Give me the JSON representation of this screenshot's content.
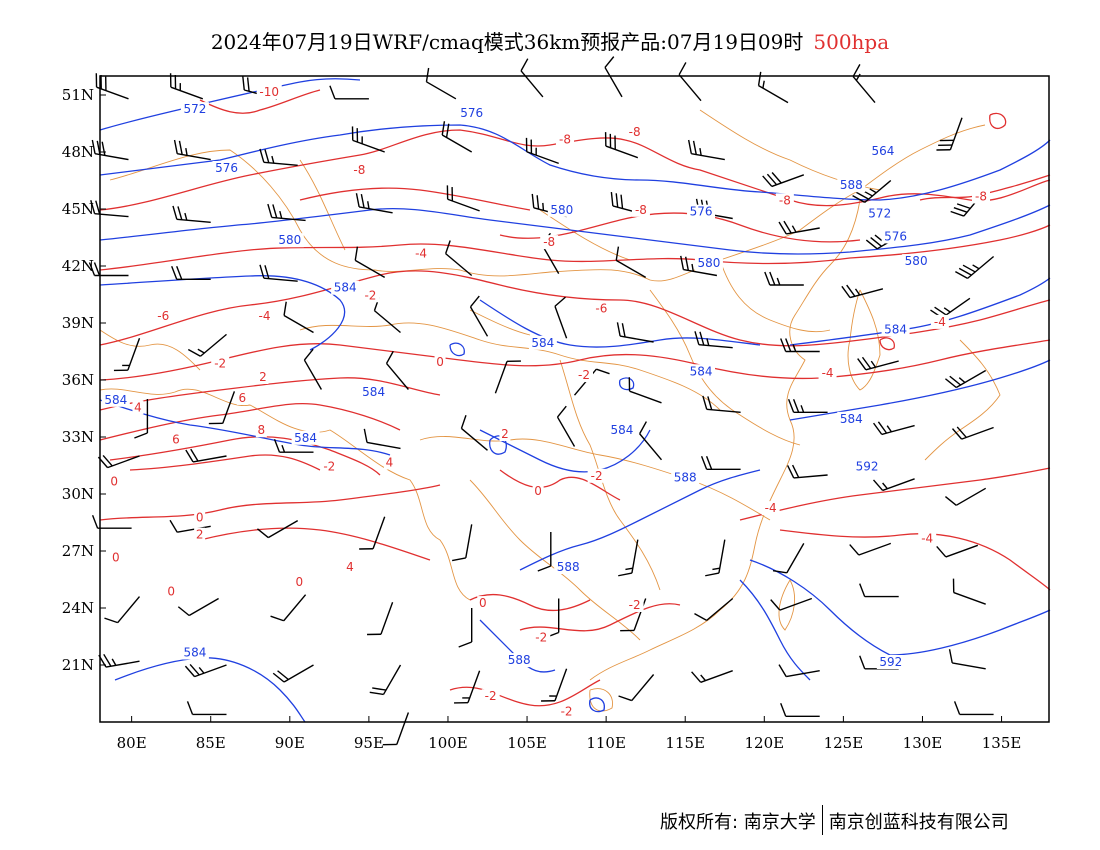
{
  "header": {
    "title": "2024年07月19日WRF/cmaq模式36km预报产品:07月19日09时",
    "level": "500hpa"
  },
  "colors": {
    "height_contour": "#2040e0",
    "temperature_contour": "#e03030",
    "coastline_border": "#e08a30",
    "wind_barb": "#000000",
    "frame": "#000000",
    "level_label": "#e03030"
  },
  "map": {
    "lon_range": [
      78,
      138
    ],
    "lat_range": [
      18,
      52
    ],
    "lon_ticks": [
      {
        "value": 80,
        "label": "80E"
      },
      {
        "value": 85,
        "label": "85E"
      },
      {
        "value": 90,
        "label": "90E"
      },
      {
        "value": 95,
        "label": "95E"
      },
      {
        "value": 100,
        "label": "100E"
      },
      {
        "value": 105,
        "label": "105E"
      },
      {
        "value": 110,
        "label": "110E"
      },
      {
        "value": 115,
        "label": "115E"
      },
      {
        "value": 120,
        "label": "120E"
      },
      {
        "value": 125,
        "label": "125E"
      },
      {
        "value": 130,
        "label": "130E"
      },
      {
        "value": 135,
        "label": "135E"
      }
    ],
    "lat_ticks": [
      {
        "value": 51,
        "label": "51N"
      },
      {
        "value": 48,
        "label": "48N"
      },
      {
        "value": 45,
        "label": "45N"
      },
      {
        "value": 42,
        "label": "42N"
      },
      {
        "value": 39,
        "label": "39N"
      },
      {
        "value": 36,
        "label": "36N"
      },
      {
        "value": 33,
        "label": "33N"
      },
      {
        "value": 30,
        "label": "30N"
      },
      {
        "value": 27,
        "label": "27N"
      },
      {
        "value": 24,
        "label": "24N"
      },
      {
        "value": 21,
        "label": "21N"
      }
    ],
    "height_labels": [
      {
        "text": "572",
        "lon": 84.0,
        "lat": 50.1
      },
      {
        "text": "576",
        "lon": 86.0,
        "lat": 47.0
      },
      {
        "text": "576",
        "lon": 101.5,
        "lat": 49.9
      },
      {
        "text": "580",
        "lon": 90.0,
        "lat": 43.2
      },
      {
        "text": "580",
        "lon": 107.2,
        "lat": 44.8
      },
      {
        "text": "584",
        "lon": 93.5,
        "lat": 40.7
      },
      {
        "text": "584",
        "lon": 106.0,
        "lat": 37.8
      },
      {
        "text": "584",
        "lon": 95.3,
        "lat": 35.2
      },
      {
        "text": "584",
        "lon": 91.0,
        "lat": 32.8
      },
      {
        "text": "584",
        "lon": 111.0,
        "lat": 33.2
      },
      {
        "text": "584",
        "lon": 116.0,
        "lat": 36.3
      },
      {
        "text": "584",
        "lon": 128.3,
        "lat": 38.5
      },
      {
        "text": "584",
        "lon": 84.0,
        "lat": 21.5
      },
      {
        "text": "588",
        "lon": 107.6,
        "lat": 26.0
      },
      {
        "text": "588",
        "lon": 115.0,
        "lat": 30.7
      },
      {
        "text": "588",
        "lon": 104.5,
        "lat": 21.1
      },
      {
        "text": "588",
        "lon": 125.5,
        "lat": 46.1
      },
      {
        "text": "580",
        "lon": 116.5,
        "lat": 42.0
      },
      {
        "text": "580",
        "lon": 129.6,
        "lat": 42.1
      },
      {
        "text": "576",
        "lon": 116.0,
        "lat": 44.7
      },
      {
        "text": "576",
        "lon": 128.3,
        "lat": 43.4
      },
      {
        "text": "572",
        "lon": 127.3,
        "lat": 44.6
      },
      {
        "text": "564",
        "lon": 127.5,
        "lat": 47.9
      },
      {
        "text": "592",
        "lon": 126.5,
        "lat": 31.3
      },
      {
        "text": "592",
        "lon": 128.0,
        "lat": 21.0
      },
      {
        "text": "584",
        "lon": 79.0,
        "lat": 34.8
      },
      {
        "text": "584",
        "lon": 125.5,
        "lat": 33.8
      }
    ],
    "temp_labels": [
      {
        "text": "-10",
        "lon": 88.7,
        "lat": 51.0
      },
      {
        "text": "-8",
        "lon": 94.4,
        "lat": 46.9
      },
      {
        "text": "-8",
        "lon": 107.4,
        "lat": 48.5
      },
      {
        "text": "-8",
        "lon": 111.8,
        "lat": 48.9
      },
      {
        "text": "-8",
        "lon": 112.2,
        "lat": 44.8
      },
      {
        "text": "-8",
        "lon": 106.4,
        "lat": 43.1
      },
      {
        "text": "-8",
        "lon": 121.3,
        "lat": 45.3
      },
      {
        "text": "-8",
        "lon": 133.7,
        "lat": 45.5
      },
      {
        "text": "-4",
        "lon": 98.3,
        "lat": 42.5
      },
      {
        "text": "-4",
        "lon": 88.4,
        "lat": 39.2
      },
      {
        "text": "-4",
        "lon": 131.1,
        "lat": 38.9
      },
      {
        "text": "-4",
        "lon": 124.0,
        "lat": 36.2
      },
      {
        "text": "-4",
        "lon": 120.4,
        "lat": 29.1
      },
      {
        "text": "-4",
        "lon": 130.3,
        "lat": 27.5
      },
      {
        "text": "-2",
        "lon": 95.1,
        "lat": 40.3
      },
      {
        "text": "-2",
        "lon": 85.6,
        "lat": 36.7
      },
      {
        "text": "-2",
        "lon": 108.6,
        "lat": 36.1
      },
      {
        "text": "-2",
        "lon": 109.4,
        "lat": 30.8
      },
      {
        "text": "-2",
        "lon": 92.5,
        "lat": 31.3
      },
      {
        "text": "-2",
        "lon": 111.8,
        "lat": 24.0
      },
      {
        "text": "-2",
        "lon": 105.9,
        "lat": 22.3
      },
      {
        "text": "-2",
        "lon": 102.7,
        "lat": 19.2
      },
      {
        "text": "-2",
        "lon": 107.5,
        "lat": 18.4
      },
      {
        "text": "-6",
        "lon": 82.0,
        "lat": 39.2
      },
      {
        "text": "-6",
        "lon": 109.7,
        "lat": 39.6
      },
      {
        "text": "2",
        "lon": 88.3,
        "lat": 36.0
      },
      {
        "text": "2",
        "lon": 103.6,
        "lat": 33.0
      },
      {
        "text": "2",
        "lon": 84.3,
        "lat": 27.7
      },
      {
        "text": "4",
        "lon": 80.4,
        "lat": 34.4
      },
      {
        "text": "4",
        "lon": 96.3,
        "lat": 31.5
      },
      {
        "text": "4",
        "lon": 93.8,
        "lat": 26.0
      },
      {
        "text": "6",
        "lon": 87.0,
        "lat": 34.9
      },
      {
        "text": "6",
        "lon": 82.8,
        "lat": 32.7
      },
      {
        "text": "8",
        "lon": 88.2,
        "lat": 33.2
      },
      {
        "text": "0",
        "lon": 99.5,
        "lat": 36.8
      },
      {
        "text": "0",
        "lon": 78.9,
        "lat": 30.5
      },
      {
        "text": "0",
        "lon": 84.3,
        "lat": 28.6
      },
      {
        "text": "0",
        "lon": 79.0,
        "lat": 26.5
      },
      {
        "text": "0",
        "lon": 82.5,
        "lat": 24.7
      },
      {
        "text": "0",
        "lon": 90.6,
        "lat": 25.2
      },
      {
        "text": "0",
        "lon": 105.7,
        "lat": 30.0
      },
      {
        "text": "0",
        "lon": 102.2,
        "lat": 24.1
      }
    ],
    "wind_barbs": [
      {
        "lon": 79.8,
        "lat": 50.8,
        "dir": 290,
        "spd": 30
      },
      {
        "lon": 84.5,
        "lat": 50.8,
        "dir": 290,
        "spd": 25
      },
      {
        "lon": 89.2,
        "lat": 50.8,
        "dir": 285,
        "spd": 20
      },
      {
        "lon": 95.0,
        "lat": 50.8,
        "dir": 270,
        "spd": 10
      },
      {
        "lon": 100.5,
        "lat": 50.8,
        "dir": 300,
        "spd": 10
      },
      {
        "lon": 106.0,
        "lat": 50.9,
        "dir": 320,
        "spd": 10
      },
      {
        "lon": 111.0,
        "lat": 50.9,
        "dir": 330,
        "spd": 10
      },
      {
        "lon": 116.0,
        "lat": 50.7,
        "dir": 320,
        "spd": 10
      },
      {
        "lon": 121.5,
        "lat": 50.6,
        "dir": 300,
        "spd": 15
      },
      {
        "lon": 127.0,
        "lat": 50.6,
        "dir": 320,
        "spd": 15
      },
      {
        "lon": 132.5,
        "lat": 49.8,
        "dir": 200,
        "spd": 30
      },
      {
        "lon": 79.8,
        "lat": 47.6,
        "dir": 280,
        "spd": 30
      },
      {
        "lon": 85.0,
        "lat": 47.6,
        "dir": 280,
        "spd": 25
      },
      {
        "lon": 90.5,
        "lat": 47.3,
        "dir": 275,
        "spd": 25
      },
      {
        "lon": 96.0,
        "lat": 48.0,
        "dir": 290,
        "spd": 25
      },
      {
        "lon": 101.5,
        "lat": 48.0,
        "dir": 300,
        "spd": 20
      },
      {
        "lon": 107.0,
        "lat": 47.4,
        "dir": 290,
        "spd": 25
      },
      {
        "lon": 112.0,
        "lat": 47.7,
        "dir": 290,
        "spd": 30
      },
      {
        "lon": 117.5,
        "lat": 47.6,
        "dir": 280,
        "spd": 25
      },
      {
        "lon": 122.5,
        "lat": 46.8,
        "dir": 250,
        "spd": 30
      },
      {
        "lon": 128.0,
        "lat": 46.5,
        "dir": 230,
        "spd": 35
      },
      {
        "lon": 134.0,
        "lat": 46.0,
        "dir": 220,
        "spd": 30
      },
      {
        "lon": 79.8,
        "lat": 44.6,
        "dir": 275,
        "spd": 20
      },
      {
        "lon": 85.0,
        "lat": 44.3,
        "dir": 275,
        "spd": 25
      },
      {
        "lon": 91.0,
        "lat": 44.4,
        "dir": 275,
        "spd": 25
      },
      {
        "lon": 96.5,
        "lat": 44.8,
        "dir": 280,
        "spd": 25
      },
      {
        "lon": 102.0,
        "lat": 44.9,
        "dir": 290,
        "spd": 20
      },
      {
        "lon": 107.5,
        "lat": 44.6,
        "dir": 285,
        "spd": 25
      },
      {
        "lon": 112.5,
        "lat": 44.7,
        "dir": 285,
        "spd": 30
      },
      {
        "lon": 118.0,
        "lat": 44.5,
        "dir": 280,
        "spd": 30
      },
      {
        "lon": 123.5,
        "lat": 44.0,
        "dir": 260,
        "spd": 25
      },
      {
        "lon": 129.0,
        "lat": 43.8,
        "dir": 240,
        "spd": 30
      },
      {
        "lon": 134.5,
        "lat": 42.5,
        "dir": 230,
        "spd": 35
      },
      {
        "lon": 79.8,
        "lat": 41.5,
        "dir": 270,
        "spd": 20
      },
      {
        "lon": 85.0,
        "lat": 41.3,
        "dir": 270,
        "spd": 20
      },
      {
        "lon": 90.5,
        "lat": 41.2,
        "dir": 275,
        "spd": 20
      },
      {
        "lon": 96.0,
        "lat": 41.4,
        "dir": 300,
        "spd": 10
      },
      {
        "lon": 101.5,
        "lat": 41.5,
        "dir": 310,
        "spd": 10
      },
      {
        "lon": 107.0,
        "lat": 41.6,
        "dir": 330,
        "spd": 10
      },
      {
        "lon": 112.5,
        "lat": 41.4,
        "dir": 300,
        "spd": 10
      },
      {
        "lon": 117.0,
        "lat": 41.5,
        "dir": 280,
        "spd": 25
      },
      {
        "lon": 122.5,
        "lat": 41.0,
        "dir": 270,
        "spd": 25
      },
      {
        "lon": 127.5,
        "lat": 40.8,
        "dir": 255,
        "spd": 25
      },
      {
        "lon": 133.0,
        "lat": 40.3,
        "dir": 235,
        "spd": 25
      },
      {
        "lon": 80.5,
        "lat": 38.2,
        "dir": 200,
        "spd": 15
      },
      {
        "lon": 86.0,
        "lat": 38.4,
        "dir": 230,
        "spd": 15
      },
      {
        "lon": 91.5,
        "lat": 38.5,
        "dir": 300,
        "spd": 10
      },
      {
        "lon": 97.0,
        "lat": 38.5,
        "dir": 310,
        "spd": 10
      },
      {
        "lon": 102.5,
        "lat": 38.3,
        "dir": 330,
        "spd": 10
      },
      {
        "lon": 107.5,
        "lat": 38.2,
        "dir": 340,
        "spd": 10
      },
      {
        "lon": 113.0,
        "lat": 38.0,
        "dir": 280,
        "spd": 20
      },
      {
        "lon": 118.0,
        "lat": 37.7,
        "dir": 275,
        "spd": 25
      },
      {
        "lon": 123.5,
        "lat": 37.5,
        "dir": 270,
        "spd": 25
      },
      {
        "lon": 128.5,
        "lat": 37.0,
        "dir": 255,
        "spd": 25
      },
      {
        "lon": 134.0,
        "lat": 36.5,
        "dir": 240,
        "spd": 25
      },
      {
        "lon": 81.0,
        "lat": 35.0,
        "dir": 180,
        "spd": 10
      },
      {
        "lon": 86.5,
        "lat": 35.4,
        "dir": 200,
        "spd": 10
      },
      {
        "lon": 92.0,
        "lat": 35.5,
        "dir": 330,
        "spd": 10
      },
      {
        "lon": 97.5,
        "lat": 35.5,
        "dir": 320,
        "spd": 10
      },
      {
        "lon": 103.0,
        "lat": 35.3,
        "dir": 20,
        "spd": 10
      },
      {
        "lon": 108.0,
        "lat": 35.2,
        "dir": 40,
        "spd": 10
      },
      {
        "lon": 113.5,
        "lat": 34.8,
        "dir": 290,
        "spd": 10
      },
      {
        "lon": 118.5,
        "lat": 34.3,
        "dir": 275,
        "spd": 20
      },
      {
        "lon": 124.0,
        "lat": 34.3,
        "dir": 270,
        "spd": 25
      },
      {
        "lon": 129.5,
        "lat": 33.6,
        "dir": 255,
        "spd": 25
      },
      {
        "lon": 134.5,
        "lat": 33.5,
        "dir": 250,
        "spd": 20
      },
      {
        "lon": 80.5,
        "lat": 32.0,
        "dir": 250,
        "spd": 20
      },
      {
        "lon": 86.0,
        "lat": 32.0,
        "dir": 260,
        "spd": 20
      },
      {
        "lon": 91.5,
        "lat": 32.2,
        "dir": 270,
        "spd": 15
      },
      {
        "lon": 97.0,
        "lat": 32.4,
        "dir": 280,
        "spd": 10
      },
      {
        "lon": 102.5,
        "lat": 32.3,
        "dir": 310,
        "spd": 10
      },
      {
        "lon": 108.0,
        "lat": 32.5,
        "dir": 330,
        "spd": 10
      },
      {
        "lon": 113.5,
        "lat": 31.8,
        "dir": 320,
        "spd": 10
      },
      {
        "lon": 118.5,
        "lat": 31.3,
        "dir": 270,
        "spd": 20
      },
      {
        "lon": 124.0,
        "lat": 31.0,
        "dir": 265,
        "spd": 20
      },
      {
        "lon": 129.5,
        "lat": 30.8,
        "dir": 250,
        "spd": 15
      },
      {
        "lon": 134.0,
        "lat": 30.3,
        "dir": 240,
        "spd": 10
      },
      {
        "lon": 80.0,
        "lat": 28.2,
        "dir": 270,
        "spd": 10
      },
      {
        "lon": 85.0,
        "lat": 28.3,
        "dir": 260,
        "spd": 10
      },
      {
        "lon": 90.5,
        "lat": 28.6,
        "dir": 240,
        "spd": 10
      },
      {
        "lon": 96.0,
        "lat": 28.8,
        "dir": 200,
        "spd": 10
      },
      {
        "lon": 101.5,
        "lat": 28.4,
        "dir": 190,
        "spd": 10
      },
      {
        "lon": 106.5,
        "lat": 28.0,
        "dir": 180,
        "spd": 10
      },
      {
        "lon": 112.0,
        "lat": 27.6,
        "dir": 190,
        "spd": 15
      },
      {
        "lon": 117.5,
        "lat": 27.6,
        "dir": 190,
        "spd": 15
      },
      {
        "lon": 122.5,
        "lat": 27.4,
        "dir": 210,
        "spd": 10
      },
      {
        "lon": 128.0,
        "lat": 27.4,
        "dir": 250,
        "spd": 10
      },
      {
        "lon": 133.5,
        "lat": 27.3,
        "dir": 250,
        "spd": 10
      },
      {
        "lon": 80.5,
        "lat": 24.6,
        "dir": 220,
        "spd": 10
      },
      {
        "lon": 85.5,
        "lat": 24.5,
        "dir": 240,
        "spd": 10
      },
      {
        "lon": 91.0,
        "lat": 24.7,
        "dir": 220,
        "spd": 10
      },
      {
        "lon": 96.5,
        "lat": 24.3,
        "dir": 200,
        "spd": 10
      },
      {
        "lon": 101.5,
        "lat": 24.0,
        "dir": 180,
        "spd": 10
      },
      {
        "lon": 107.0,
        "lat": 24.5,
        "dir": 180,
        "spd": 10
      },
      {
        "lon": 112.5,
        "lat": 24.5,
        "dir": 200,
        "spd": 10
      },
      {
        "lon": 118.0,
        "lat": 24.5,
        "dir": 230,
        "spd": 10
      },
      {
        "lon": 123.0,
        "lat": 24.5,
        "dir": 250,
        "spd": 10
      },
      {
        "lon": 128.5,
        "lat": 24.6,
        "dir": 270,
        "spd": 10
      },
      {
        "lon": 134.0,
        "lat": 24.2,
        "dir": 290,
        "spd": 10
      },
      {
        "lon": 80.5,
        "lat": 21.2,
        "dir": 260,
        "spd": 25
      },
      {
        "lon": 86.0,
        "lat": 21.0,
        "dir": 250,
        "spd": 25
      },
      {
        "lon": 91.5,
        "lat": 21.0,
        "dir": 240,
        "spd": 20
      },
      {
        "lon": 97.0,
        "lat": 21.0,
        "dir": 210,
        "spd": 20
      },
      {
        "lon": 102.0,
        "lat": 20.7,
        "dir": 200,
        "spd": 15
      },
      {
        "lon": 107.5,
        "lat": 20.8,
        "dir": 200,
        "spd": 15
      },
      {
        "lon": 113.0,
        "lat": 20.5,
        "dir": 220,
        "spd": 10
      },
      {
        "lon": 118.0,
        "lat": 20.7,
        "dir": 250,
        "spd": 15
      },
      {
        "lon": 123.5,
        "lat": 20.7,
        "dir": 260,
        "spd": 10
      },
      {
        "lon": 128.5,
        "lat": 20.8,
        "dir": 270,
        "spd": 10
      },
      {
        "lon": 134.0,
        "lat": 20.8,
        "dir": 280,
        "spd": 10
      },
      {
        "lon": 86.0,
        "lat": 18.4,
        "dir": 270,
        "spd": 10
      },
      {
        "lon": 97.5,
        "lat": 18.5,
        "dir": 200,
        "spd": 10
      },
      {
        "lon": 123.5,
        "lat": 18.3,
        "dir": 270,
        "spd": 10
      },
      {
        "lon": 134.5,
        "lat": 18.4,
        "dir": 270,
        "spd": 10
      }
    ]
  },
  "footer": {
    "copyright": "版权所有: 南京大学",
    "company": "南京创蓝科技有限公司"
  }
}
